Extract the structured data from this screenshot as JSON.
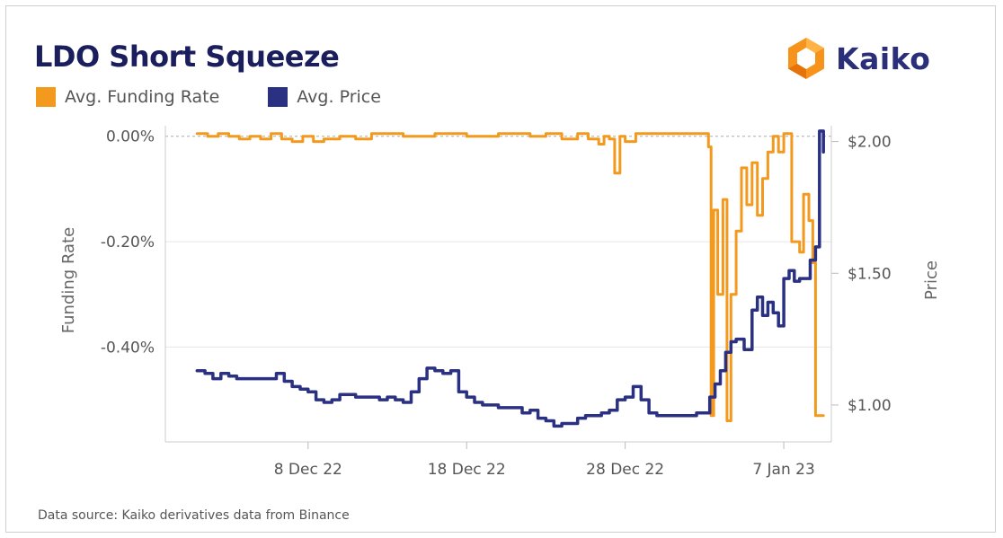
{
  "header": {
    "title": "LDO Short Squeeze",
    "brand": "Kaiko",
    "brand_colors": [
      "#f7931a",
      "#2a2f7a"
    ]
  },
  "footer": {
    "source": "Data source: Kaiko derivatives data from Binance"
  },
  "chart_data": {
    "type": "line",
    "title": "LDO Short Squeeze",
    "legend_placement": "top-left",
    "grid": true,
    "x_axis": {
      "ticks": [
        "8 Dec 22",
        "18 Dec 22",
        "28 Dec 22",
        "7 Jan 23"
      ],
      "range": [
        "2022-11-29",
        "2023-01-10"
      ]
    },
    "y_left": {
      "label": "Funding Rate",
      "ticks": [
        "0.00%",
        "-0.20%",
        "-0.40%"
      ],
      "range": [
        -0.58,
        0.02
      ],
      "unit": "%"
    },
    "y_right": {
      "label": "Price",
      "ticks": [
        "$2.00",
        "$1.50",
        "$1.00"
      ],
      "range": [
        0.86,
        2.06
      ],
      "unit": "$"
    },
    "series": [
      {
        "name": "Avg. Funding Rate",
        "axis": "left",
        "color": "#f39a1e",
        "points": [
          [
            "2022-12-01 00:00",
            0.005
          ],
          [
            "2022-12-01 16:00",
            0.0
          ],
          [
            "2022-12-02 08:00",
            0.005
          ],
          [
            "2022-12-03 00:00",
            0.0
          ],
          [
            "2022-12-03 16:00",
            -0.005
          ],
          [
            "2022-12-04 08:00",
            0.0
          ],
          [
            "2022-12-05 00:00",
            -0.005
          ],
          [
            "2022-12-05 16:00",
            0.005
          ],
          [
            "2022-12-06 08:00",
            -0.005
          ],
          [
            "2022-12-07 00:00",
            -0.01
          ],
          [
            "2022-12-07 16:00",
            0.0
          ],
          [
            "2022-12-08 08:00",
            -0.01
          ],
          [
            "2022-12-09 00:00",
            -0.005
          ],
          [
            "2022-12-10 00:00",
            0.0
          ],
          [
            "2022-12-11 00:00",
            -0.005
          ],
          [
            "2022-12-12 00:00",
            0.005
          ],
          [
            "2022-12-14 00:00",
            0.0
          ],
          [
            "2022-12-16 00:00",
            0.005
          ],
          [
            "2022-12-18 00:00",
            0.0
          ],
          [
            "2022-12-20 00:00",
            0.005
          ],
          [
            "2022-12-22 00:00",
            0.0
          ],
          [
            "2022-12-23 00:00",
            0.005
          ],
          [
            "2022-12-24 00:00",
            -0.005
          ],
          [
            "2022-12-25 00:00",
            0.005
          ],
          [
            "2022-12-25 16:00",
            -0.005
          ],
          [
            "2022-12-26 08:00",
            -0.015
          ],
          [
            "2022-12-26 16:00",
            0.0
          ],
          [
            "2022-12-27 00:00",
            -0.005
          ],
          [
            "2022-12-27 08:00",
            -0.07
          ],
          [
            "2022-12-27 16:00",
            0.0
          ],
          [
            "2022-12-28 00:00",
            -0.01
          ],
          [
            "2022-12-28 16:00",
            0.005
          ],
          [
            "2023-01-01 00:00",
            0.005
          ],
          [
            "2023-01-02 00:00",
            0.005
          ],
          [
            "2023-01-02 06:00",
            -0.02
          ],
          [
            "2023-01-02 10:00",
            -0.53
          ],
          [
            "2023-01-02 14:00",
            -0.14
          ],
          [
            "2023-01-02 20:00",
            -0.3
          ],
          [
            "2023-01-03 04:00",
            -0.12
          ],
          [
            "2023-01-03 10:00",
            -0.54
          ],
          [
            "2023-01-03 16:00",
            -0.3
          ],
          [
            "2023-01-04 00:00",
            -0.18
          ],
          [
            "2023-01-04 08:00",
            -0.06
          ],
          [
            "2023-01-04 16:00",
            -0.13
          ],
          [
            "2023-01-05 00:00",
            -0.05
          ],
          [
            "2023-01-05 08:00",
            -0.15
          ],
          [
            "2023-01-05 16:00",
            -0.08
          ],
          [
            "2023-01-06 00:00",
            -0.03
          ],
          [
            "2023-01-06 08:00",
            0.0
          ],
          [
            "2023-01-06 16:00",
            -0.03
          ],
          [
            "2023-01-07 00:00",
            0.005
          ],
          [
            "2023-01-07 12:00",
            -0.2
          ],
          [
            "2023-01-08 00:00",
            -0.22
          ],
          [
            "2023-01-08 06:00",
            -0.11
          ],
          [
            "2023-01-08 14:00",
            -0.16
          ],
          [
            "2023-01-08 20:00",
            -0.24
          ],
          [
            "2023-01-09 00:00",
            -0.53
          ],
          [
            "2023-01-09 12:00",
            -0.53
          ]
        ]
      },
      {
        "name": "Avg. Price",
        "axis": "right",
        "color": "#2b3182",
        "points": [
          [
            "2022-12-01 00:00",
            1.13
          ],
          [
            "2022-12-01 12:00",
            1.12
          ],
          [
            "2022-12-02 00:00",
            1.1
          ],
          [
            "2022-12-02 12:00",
            1.12
          ],
          [
            "2022-12-03 00:00",
            1.11
          ],
          [
            "2022-12-03 12:00",
            1.1
          ],
          [
            "2022-12-04 00:00",
            1.1
          ],
          [
            "2022-12-05 00:00",
            1.1
          ],
          [
            "2022-12-06 00:00",
            1.12
          ],
          [
            "2022-12-06 12:00",
            1.09
          ],
          [
            "2022-12-07 00:00",
            1.07
          ],
          [
            "2022-12-07 12:00",
            1.06
          ],
          [
            "2022-12-08 00:00",
            1.05
          ],
          [
            "2022-12-08 12:00",
            1.02
          ],
          [
            "2022-12-09 00:00",
            1.01
          ],
          [
            "2022-12-09 12:00",
            1.02
          ],
          [
            "2022-12-10 00:00",
            1.04
          ],
          [
            "2022-12-11 00:00",
            1.03
          ],
          [
            "2022-12-12 00:00",
            1.03
          ],
          [
            "2022-12-12 12:00",
            1.02
          ],
          [
            "2022-12-13 00:00",
            1.03
          ],
          [
            "2022-12-13 12:00",
            1.02
          ],
          [
            "2022-12-14 00:00",
            1.01
          ],
          [
            "2022-12-14 12:00",
            1.05
          ],
          [
            "2022-12-15 00:00",
            1.1
          ],
          [
            "2022-12-15 12:00",
            1.14
          ],
          [
            "2022-12-16 00:00",
            1.13
          ],
          [
            "2022-12-16 12:00",
            1.12
          ],
          [
            "2022-12-17 00:00",
            1.13
          ],
          [
            "2022-12-17 12:00",
            1.05
          ],
          [
            "2022-12-18 00:00",
            1.03
          ],
          [
            "2022-12-18 12:00",
            1.01
          ],
          [
            "2022-12-19 00:00",
            1.0
          ],
          [
            "2022-12-20 00:00",
            0.99
          ],
          [
            "2022-12-21 00:00",
            0.99
          ],
          [
            "2022-12-21 12:00",
            0.97
          ],
          [
            "2022-12-22 00:00",
            0.98
          ],
          [
            "2022-12-22 12:00",
            0.95
          ],
          [
            "2022-12-23 00:00",
            0.94
          ],
          [
            "2022-12-23 12:00",
            0.92
          ],
          [
            "2022-12-24 00:00",
            0.93
          ],
          [
            "2022-12-25 00:00",
            0.95
          ],
          [
            "2022-12-25 12:00",
            0.96
          ],
          [
            "2022-12-26 00:00",
            0.96
          ],
          [
            "2022-12-26 12:00",
            0.97
          ],
          [
            "2022-12-27 00:00",
            0.98
          ],
          [
            "2022-12-27 12:00",
            1.02
          ],
          [
            "2022-12-28 00:00",
            1.03
          ],
          [
            "2022-12-28 12:00",
            1.07
          ],
          [
            "2022-12-29 00:00",
            1.02
          ],
          [
            "2022-12-29 12:00",
            0.97
          ],
          [
            "2022-12-30 00:00",
            0.96
          ],
          [
            "2022-12-31 00:00",
            0.96
          ],
          [
            "2023-01-01 00:00",
            0.96
          ],
          [
            "2023-01-01 12:00",
            0.97
          ],
          [
            "2023-01-02 00:00",
            0.97
          ],
          [
            "2023-01-02 08:00",
            1.03
          ],
          [
            "2023-01-02 16:00",
            1.08
          ],
          [
            "2023-01-03 00:00",
            1.13
          ],
          [
            "2023-01-03 08:00",
            1.2
          ],
          [
            "2023-01-03 16:00",
            1.24
          ],
          [
            "2023-01-04 00:00",
            1.25
          ],
          [
            "2023-01-04 12:00",
            1.21
          ],
          [
            "2023-01-05 00:00",
            1.36
          ],
          [
            "2023-01-05 08:00",
            1.41
          ],
          [
            "2023-01-05 16:00",
            1.34
          ],
          [
            "2023-01-06 00:00",
            1.39
          ],
          [
            "2023-01-06 08:00",
            1.35
          ],
          [
            "2023-01-06 16:00",
            1.3
          ],
          [
            "2023-01-07 00:00",
            1.48
          ],
          [
            "2023-01-07 08:00",
            1.51
          ],
          [
            "2023-01-07 16:00",
            1.47
          ],
          [
            "2023-01-08 00:00",
            1.48
          ],
          [
            "2023-01-08 08:00",
            1.48
          ],
          [
            "2023-01-08 16:00",
            1.55
          ],
          [
            "2023-01-09 00:00",
            1.6
          ],
          [
            "2023-01-09 06:00",
            2.04
          ],
          [
            "2023-01-09 12:00",
            1.96
          ]
        ]
      }
    ]
  }
}
